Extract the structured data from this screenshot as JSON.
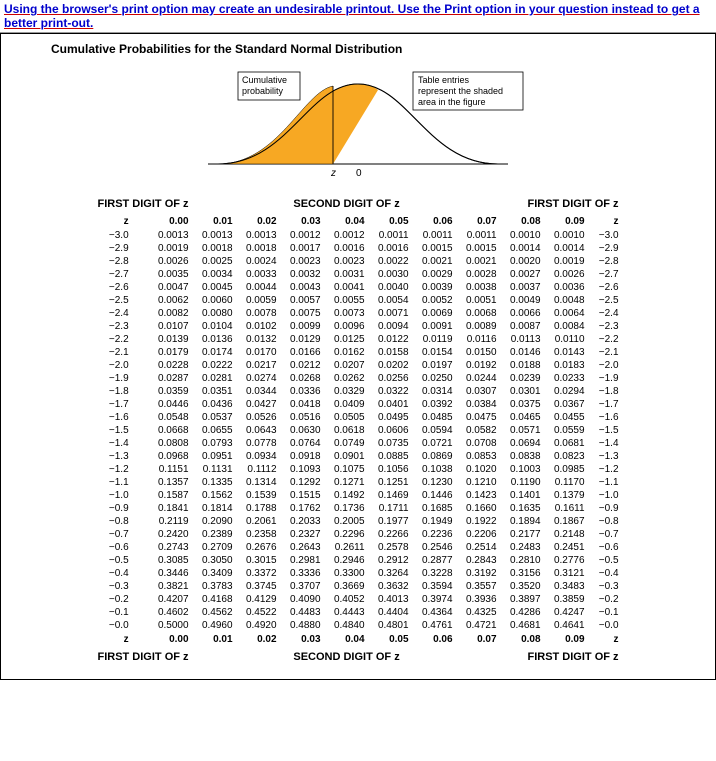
{
  "warning_text": "Using the browser's print option may create an undesirable printout. Use the Print option in your question instead to get a better print-out.",
  "page_title": "Cumulative Probabilities for the Standard Normal Distribution",
  "figure": {
    "cumprob_label": "Cumulative\nprobability",
    "desc_label": "Table entries\nrepresent the shaded\narea in the figure",
    "z_label": "z",
    "axis_zero": "0",
    "curve_fill": "#f7a823",
    "curve_stroke": "#000000",
    "box_stroke": "#000000",
    "background": "#ffffff"
  },
  "labels": {
    "first_digit": "FIRST DIGIT OF z",
    "second_digit": "SECOND DIGIT OF z",
    "z": "z"
  },
  "columns": [
    "0.00",
    "0.01",
    "0.02",
    "0.03",
    "0.04",
    "0.05",
    "0.06",
    "0.07",
    "0.08",
    "0.09"
  ],
  "rows": [
    {
      "z": "−3.0",
      "v": [
        "0.0013",
        "0.0013",
        "0.0013",
        "0.0012",
        "0.0012",
        "0.0011",
        "0.0011",
        "0.0011",
        "0.0010",
        "0.0010"
      ]
    },
    {
      "z": "−2.9",
      "v": [
        "0.0019",
        "0.0018",
        "0.0018",
        "0.0017",
        "0.0016",
        "0.0016",
        "0.0015",
        "0.0015",
        "0.0014",
        "0.0014"
      ]
    },
    {
      "z": "−2.8",
      "v": [
        "0.0026",
        "0.0025",
        "0.0024",
        "0.0023",
        "0.0023",
        "0.0022",
        "0.0021",
        "0.0021",
        "0.0020",
        "0.0019"
      ]
    },
    {
      "z": "−2.7",
      "v": [
        "0.0035",
        "0.0034",
        "0.0033",
        "0.0032",
        "0.0031",
        "0.0030",
        "0.0029",
        "0.0028",
        "0.0027",
        "0.0026"
      ]
    },
    {
      "z": "−2.6",
      "v": [
        "0.0047",
        "0.0045",
        "0.0044",
        "0.0043",
        "0.0041",
        "0.0040",
        "0.0039",
        "0.0038",
        "0.0037",
        "0.0036"
      ]
    },
    {
      "z": "−2.5",
      "v": [
        "0.0062",
        "0.0060",
        "0.0059",
        "0.0057",
        "0.0055",
        "0.0054",
        "0.0052",
        "0.0051",
        "0.0049",
        "0.0048"
      ]
    },
    {
      "z": "−2.4",
      "v": [
        "0.0082",
        "0.0080",
        "0.0078",
        "0.0075",
        "0.0073",
        "0.0071",
        "0.0069",
        "0.0068",
        "0.0066",
        "0.0064"
      ]
    },
    {
      "z": "−2.3",
      "v": [
        "0.0107",
        "0.0104",
        "0.0102",
        "0.0099",
        "0.0096",
        "0.0094",
        "0.0091",
        "0.0089",
        "0.0087",
        "0.0084"
      ]
    },
    {
      "z": "−2.2",
      "v": [
        "0.0139",
        "0.0136",
        "0.0132",
        "0.0129",
        "0.0125",
        "0.0122",
        "0.0119",
        "0.0116",
        "0.0113",
        "0.0110"
      ]
    },
    {
      "z": "−2.1",
      "v": [
        "0.0179",
        "0.0174",
        "0.0170",
        "0.0166",
        "0.0162",
        "0.0158",
        "0.0154",
        "0.0150",
        "0.0146",
        "0.0143"
      ]
    },
    {
      "z": "−2.0",
      "v": [
        "0.0228",
        "0.0222",
        "0.0217",
        "0.0212",
        "0.0207",
        "0.0202",
        "0.0197",
        "0.0192",
        "0.0188",
        "0.0183"
      ]
    },
    {
      "z": "−1.9",
      "v": [
        "0.0287",
        "0.0281",
        "0.0274",
        "0.0268",
        "0.0262",
        "0.0256",
        "0.0250",
        "0.0244",
        "0.0239",
        "0.0233"
      ]
    },
    {
      "z": "−1.8",
      "v": [
        "0.0359",
        "0.0351",
        "0.0344",
        "0.0336",
        "0.0329",
        "0.0322",
        "0.0314",
        "0.0307",
        "0.0301",
        "0.0294"
      ]
    },
    {
      "z": "−1.7",
      "v": [
        "0.0446",
        "0.0436",
        "0.0427",
        "0.0418",
        "0.0409",
        "0.0401",
        "0.0392",
        "0.0384",
        "0.0375",
        "0.0367"
      ]
    },
    {
      "z": "−1.6",
      "v": [
        "0.0548",
        "0.0537",
        "0.0526",
        "0.0516",
        "0.0505",
        "0.0495",
        "0.0485",
        "0.0475",
        "0.0465",
        "0.0455"
      ]
    },
    {
      "z": "−1.5",
      "v": [
        "0.0668",
        "0.0655",
        "0.0643",
        "0.0630",
        "0.0618",
        "0.0606",
        "0.0594",
        "0.0582",
        "0.0571",
        "0.0559"
      ]
    },
    {
      "z": "−1.4",
      "v": [
        "0.0808",
        "0.0793",
        "0.0778",
        "0.0764",
        "0.0749",
        "0.0735",
        "0.0721",
        "0.0708",
        "0.0694",
        "0.0681"
      ]
    },
    {
      "z": "−1.3",
      "v": [
        "0.0968",
        "0.0951",
        "0.0934",
        "0.0918",
        "0.0901",
        "0.0885",
        "0.0869",
        "0.0853",
        "0.0838",
        "0.0823"
      ]
    },
    {
      "z": "−1.2",
      "v": [
        "0.1151",
        "0.1131",
        "0.1112",
        "0.1093",
        "0.1075",
        "0.1056",
        "0.1038",
        "0.1020",
        "0.1003",
        "0.0985"
      ]
    },
    {
      "z": "−1.1",
      "v": [
        "0.1357",
        "0.1335",
        "0.1314",
        "0.1292",
        "0.1271",
        "0.1251",
        "0.1230",
        "0.1210",
        "0.1190",
        "0.1170"
      ]
    },
    {
      "z": "−1.0",
      "v": [
        "0.1587",
        "0.1562",
        "0.1539",
        "0.1515",
        "0.1492",
        "0.1469",
        "0.1446",
        "0.1423",
        "0.1401",
        "0.1379"
      ]
    },
    {
      "z": "−0.9",
      "v": [
        "0.1841",
        "0.1814",
        "0.1788",
        "0.1762",
        "0.1736",
        "0.1711",
        "0.1685",
        "0.1660",
        "0.1635",
        "0.1611"
      ]
    },
    {
      "z": "−0.8",
      "v": [
        "0.2119",
        "0.2090",
        "0.2061",
        "0.2033",
        "0.2005",
        "0.1977",
        "0.1949",
        "0.1922",
        "0.1894",
        "0.1867"
      ]
    },
    {
      "z": "−0.7",
      "v": [
        "0.2420",
        "0.2389",
        "0.2358",
        "0.2327",
        "0.2296",
        "0.2266",
        "0.2236",
        "0.2206",
        "0.2177",
        "0.2148"
      ]
    },
    {
      "z": "−0.6",
      "v": [
        "0.2743",
        "0.2709",
        "0.2676",
        "0.2643",
        "0.2611",
        "0.2578",
        "0.2546",
        "0.2514",
        "0.2483",
        "0.2451"
      ]
    },
    {
      "z": "−0.5",
      "v": [
        "0.3085",
        "0.3050",
        "0.3015",
        "0.2981",
        "0.2946",
        "0.2912",
        "0.2877",
        "0.2843",
        "0.2810",
        "0.2776"
      ]
    },
    {
      "z": "−0.4",
      "v": [
        "0.3446",
        "0.3409",
        "0.3372",
        "0.3336",
        "0.3300",
        "0.3264",
        "0.3228",
        "0.3192",
        "0.3156",
        "0.3121"
      ]
    },
    {
      "z": "−0.3",
      "v": [
        "0.3821",
        "0.3783",
        "0.3745",
        "0.3707",
        "0.3669",
        "0.3632",
        "0.3594",
        "0.3557",
        "0.3520",
        "0.3483"
      ]
    },
    {
      "z": "−0.2",
      "v": [
        "0.4207",
        "0.4168",
        "0.4129",
        "0.4090",
        "0.4052",
        "0.4013",
        "0.3974",
        "0.3936",
        "0.3897",
        "0.3859"
      ]
    },
    {
      "z": "−0.1",
      "v": [
        "0.4602",
        "0.4562",
        "0.4522",
        "0.4483",
        "0.4443",
        "0.4404",
        "0.4364",
        "0.4325",
        "0.4286",
        "0.4247"
      ]
    },
    {
      "z": "−0.0",
      "v": [
        "0.5000",
        "0.4960",
        "0.4920",
        "0.4880",
        "0.4840",
        "0.4801",
        "0.4761",
        "0.4721",
        "0.4681",
        "0.4641"
      ]
    }
  ]
}
